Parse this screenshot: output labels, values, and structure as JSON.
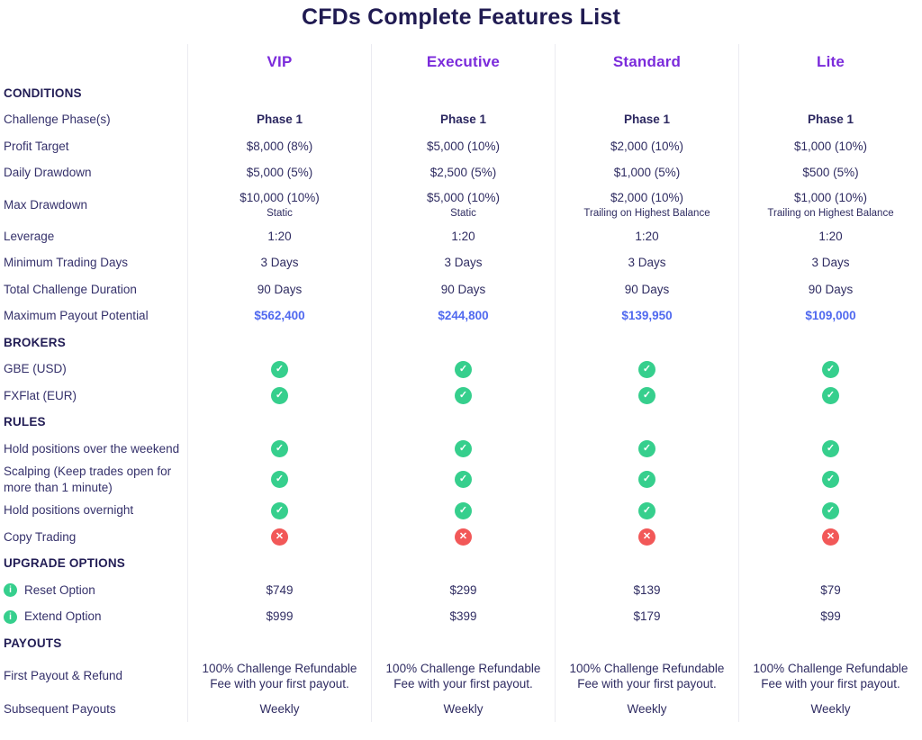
{
  "title": "CFDs Complete Features List",
  "colors": {
    "title_navy": "#201b52",
    "plan_header_purple": "#7b2bdb",
    "body_text_navy": "#2f2c62",
    "payout_highlight_blue": "#5069ef",
    "check_green": "#36cf8d",
    "cross_red": "#f25858",
    "column_divider": "#ebebf1"
  },
  "icons": {
    "check": "check-circle-icon",
    "cross": "cross-circle-icon",
    "info": "info-circle-icon"
  },
  "table": {
    "plans": [
      "VIP",
      "Executive",
      "Standard",
      "Lite"
    ],
    "rows": [
      {
        "type": "section",
        "label": "CONDITIONS"
      },
      {
        "type": "row",
        "label": "Challenge Phase(s)",
        "row_style": "bold",
        "values": [
          "Phase 1",
          "Phase 1",
          "Phase 1",
          "Phase 1"
        ]
      },
      {
        "type": "row",
        "label": "Profit Target",
        "values": [
          "$8,000 (8%)",
          "$5,000 (10%)",
          "$2,000 (10%)",
          "$1,000 (10%)"
        ]
      },
      {
        "type": "row",
        "label": "Daily Drawdown",
        "values": [
          "$5,000 (5%)",
          "$2,500 (5%)",
          "$1,000 (5%)",
          "$500 (5%)"
        ]
      },
      {
        "type": "row",
        "label": "Max Drawdown",
        "values": [
          {
            "text": "$10,000 (10%)",
            "sub": "Static"
          },
          {
            "text": "$5,000 (10%)",
            "sub": "Static"
          },
          {
            "text": "$2,000 (10%)",
            "sub": "Trailing on Highest Balance"
          },
          {
            "text": "$1,000 (10%)",
            "sub": "Trailing on Highest Balance"
          }
        ]
      },
      {
        "type": "row",
        "label": "Leverage",
        "values": [
          "1:20",
          "1:20",
          "1:20",
          "1:20"
        ]
      },
      {
        "type": "row",
        "label": "Minimum Trading Days",
        "values": [
          "3 Days",
          "3 Days",
          "3 Days",
          "3 Days"
        ]
      },
      {
        "type": "row",
        "label": "Total Challenge Duration",
        "values": [
          "90 Days",
          "90 Days",
          "90 Days",
          "90 Days"
        ]
      },
      {
        "type": "row",
        "label": "Maximum Payout Potential",
        "row_style": "highlight",
        "values": [
          "$562,400",
          "$244,800",
          "$139,950",
          "$109,000"
        ]
      },
      {
        "type": "section",
        "label": "BROKERS"
      },
      {
        "type": "row",
        "label": "GBE (USD)",
        "values": [
          {
            "icon": "check"
          },
          {
            "icon": "check"
          },
          {
            "icon": "check"
          },
          {
            "icon": "check"
          }
        ]
      },
      {
        "type": "row",
        "label": "FXFlat (EUR)",
        "values": [
          {
            "icon": "check"
          },
          {
            "icon": "check"
          },
          {
            "icon": "check"
          },
          {
            "icon": "check"
          }
        ]
      },
      {
        "type": "section",
        "label": "RULES"
      },
      {
        "type": "row",
        "label": "Hold positions over the weekend",
        "values": [
          {
            "icon": "check"
          },
          {
            "icon": "check"
          },
          {
            "icon": "check"
          },
          {
            "icon": "check"
          }
        ]
      },
      {
        "type": "row",
        "label": "Scalping (Keep trades open for more than 1 minute)",
        "values": [
          {
            "icon": "check"
          },
          {
            "icon": "check"
          },
          {
            "icon": "check"
          },
          {
            "icon": "check"
          }
        ]
      },
      {
        "type": "row",
        "label": "Hold positions overnight",
        "values": [
          {
            "icon": "check"
          },
          {
            "icon": "check"
          },
          {
            "icon": "check"
          },
          {
            "icon": "check"
          }
        ]
      },
      {
        "type": "row",
        "label": "Copy Trading",
        "values": [
          {
            "icon": "cross"
          },
          {
            "icon": "cross"
          },
          {
            "icon": "cross"
          },
          {
            "icon": "cross"
          }
        ]
      },
      {
        "type": "section",
        "label": "UPGRADE OPTIONS"
      },
      {
        "type": "row",
        "label": "Reset Option",
        "label_icon": "info",
        "values": [
          "$749",
          "$299",
          "$139",
          "$79"
        ]
      },
      {
        "type": "row",
        "label": "Extend Option",
        "label_icon": "info",
        "values": [
          "$999",
          "$399",
          "$179",
          "$99"
        ]
      },
      {
        "type": "section",
        "label": "PAYOUTS"
      },
      {
        "type": "row",
        "label": "First Payout & Refund",
        "values": [
          "100% Challenge Refundable Fee with your first payout.",
          "100% Challenge Refundable Fee with your first payout.",
          "100% Challenge Refundable Fee with your first payout.",
          "100% Challenge Refundable Fee with your first payout."
        ]
      },
      {
        "type": "row",
        "label": "Subsequent Payouts",
        "values": [
          "Weekly",
          "Weekly",
          "Weekly",
          "Weekly"
        ]
      }
    ]
  }
}
